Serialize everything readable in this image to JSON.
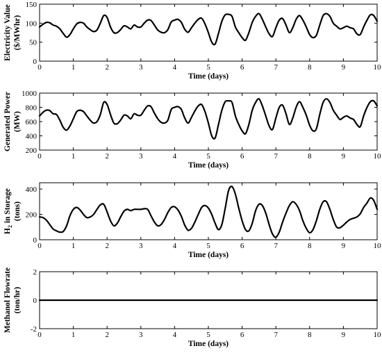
{
  "chart_data": [
    {
      "type": "line",
      "ylabel": [
        "Electricity Value",
        "($/MWhr)"
      ],
      "xlabel": "Time (days)",
      "xlim": [
        0,
        10
      ],
      "ylim": [
        0,
        150
      ],
      "xticks": [
        "0",
        "1",
        "2",
        "3",
        "4",
        "5",
        "6",
        "7",
        "8",
        "9",
        "10"
      ],
      "yticks": [
        "0",
        "50",
        "100",
        "150"
      ],
      "series": [
        {
          "x": [
            0,
            0.1,
            0.2,
            0.3,
            0.4,
            0.5,
            0.6,
            0.7,
            0.8,
            0.9,
            1,
            1.1,
            1.2,
            1.3,
            1.4,
            1.5,
            1.6,
            1.7,
            1.8,
            1.9,
            2,
            2.1,
            2.2,
            2.3,
            2.4,
            2.5,
            2.6,
            2.7,
            2.8,
            2.9,
            3,
            3.1,
            3.2,
            3.3,
            3.4,
            3.5,
            3.6,
            3.7,
            3.8,
            3.9,
            4,
            4.1,
            4.2,
            4.3,
            4.4,
            4.5,
            4.6,
            4.7,
            4.8,
            4.9,
            5,
            5.1,
            5.2,
            5.3,
            5.4,
            5.5,
            5.6,
            5.7,
            5.8,
            5.9,
            6,
            6.1,
            6.2,
            6.3,
            6.4,
            6.5,
            6.6,
            6.7,
            6.8,
            6.9,
            7,
            7.1,
            7.2,
            7.3,
            7.4,
            7.5,
            7.6,
            7.7,
            7.8,
            7.9,
            8,
            8.1,
            8.2,
            8.3,
            8.4,
            8.5,
            8.6,
            8.7,
            8.8,
            8.9,
            9,
            9.1,
            9.2,
            9.3,
            9.4,
            9.5,
            9.6,
            9.7,
            9.8,
            9.9,
            10
          ],
          "y": [
            90,
            97,
            102,
            101,
            95,
            92,
            85,
            73,
            63,
            70,
            85,
            98,
            102,
            100,
            90,
            83,
            78,
            82,
            100,
            120,
            115,
            90,
            75,
            75,
            83,
            93,
            90,
            85,
            95,
            90,
            90,
            100,
            108,
            107,
            95,
            82,
            76,
            75,
            83,
            103,
            108,
            110,
            102,
            84,
            76,
            88,
            100,
            110,
            113,
            98,
            75,
            50,
            45,
            73,
            105,
            122,
            123,
            118,
            90,
            75,
            62,
            55,
            75,
            102,
            118,
            125,
            110,
            90,
            72,
            65,
            88,
            108,
            112,
            95,
            75,
            88,
            110,
            120,
            108,
            90,
            70,
            62,
            68,
            95,
            120,
            125,
            118,
            100,
            92,
            85,
            88,
            92,
            88,
            85,
            72,
            70,
            90,
            108,
            122,
            120,
            105
          ]
        }
      ]
    },
    {
      "type": "line",
      "ylabel": [
        "Generated Power",
        "(MW)"
      ],
      "xlabel": "Time (days)",
      "xlim": [
        0,
        10
      ],
      "ylim": [
        200,
        1000
      ],
      "xticks": [
        "0",
        "1",
        "2",
        "3",
        "4",
        "5",
        "6",
        "7",
        "8",
        "9",
        "10"
      ],
      "yticks": [
        "200",
        "400",
        "600",
        "800",
        "1000"
      ],
      "series": [
        {
          "x": [
            0,
            0.1,
            0.2,
            0.3,
            0.4,
            0.5,
            0.6,
            0.7,
            0.8,
            0.9,
            1,
            1.1,
            1.2,
            1.3,
            1.4,
            1.5,
            1.6,
            1.7,
            1.8,
            1.9,
            2,
            2.1,
            2.2,
            2.3,
            2.4,
            2.5,
            2.6,
            2.7,
            2.8,
            2.9,
            3,
            3.1,
            3.2,
            3.3,
            3.4,
            3.5,
            3.6,
            3.7,
            3.8,
            3.9,
            4,
            4.1,
            4.2,
            4.3,
            4.4,
            4.5,
            4.6,
            4.7,
            4.8,
            4.9,
            5,
            5.1,
            5.2,
            5.3,
            5.4,
            5.5,
            5.6,
            5.7,
            5.8,
            5.9,
            6,
            6.1,
            6.2,
            6.3,
            6.4,
            6.5,
            6.6,
            6.7,
            6.8,
            6.9,
            7,
            7.1,
            7.2,
            7.3,
            7.4,
            7.5,
            7.6,
            7.7,
            7.8,
            7.9,
            8,
            8.1,
            8.2,
            8.3,
            8.4,
            8.5,
            8.6,
            8.7,
            8.8,
            8.9,
            9,
            9.1,
            9.2,
            9.3,
            9.4,
            9.5,
            9.6,
            9.7,
            9.8,
            9.9,
            10
          ],
          "y": [
            680,
            730,
            760,
            755,
            710,
            700,
            620,
            520,
            480,
            540,
            640,
            740,
            760,
            740,
            680,
            620,
            580,
            600,
            700,
            870,
            840,
            700,
            580,
            570,
            620,
            690,
            680,
            640,
            710,
            690,
            690,
            760,
            820,
            810,
            720,
            640,
            590,
            580,
            620,
            770,
            800,
            810,
            770,
            650,
            580,
            660,
            750,
            820,
            840,
            740,
            580,
            400,
            370,
            560,
            760,
            880,
            890,
            870,
            680,
            560,
            470,
            430,
            560,
            760,
            870,
            920,
            820,
            680,
            540,
            490,
            650,
            800,
            830,
            710,
            560,
            650,
            800,
            880,
            800,
            690,
            550,
            470,
            500,
            700,
            870,
            920,
            870,
            760,
            690,
            630,
            660,
            680,
            650,
            630,
            560,
            530,
            680,
            800,
            880,
            890,
            820
          ]
        }
      ]
    },
    {
      "type": "line",
      "ylabel": [
        "H2 in Storage",
        "(tons)"
      ],
      "ylabel_parts": {
        "main": "H",
        "sub": "2",
        "rest": " in Storage"
      },
      "xlabel": "Time (days)",
      "xlim": [
        0,
        10
      ],
      "ylim": [
        0,
        450
      ],
      "xticks": [
        "0",
        "1",
        "2",
        "3",
        "4",
        "5",
        "6",
        "7",
        "8",
        "9",
        "10"
      ],
      "yticks": [
        "0",
        "200",
        "400"
      ],
      "series": [
        {
          "x": [
            0,
            0.1,
            0.2,
            0.3,
            0.4,
            0.5,
            0.6,
            0.7,
            0.8,
            0.9,
            1,
            1.1,
            1.2,
            1.3,
            1.4,
            1.5,
            1.6,
            1.7,
            1.8,
            1.9,
            2,
            2.1,
            2.2,
            2.3,
            2.4,
            2.5,
            2.6,
            2.7,
            2.8,
            2.9,
            3,
            3.1,
            3.2,
            3.3,
            3.4,
            3.5,
            3.6,
            3.7,
            3.8,
            3.9,
            4,
            4.1,
            4.2,
            4.3,
            4.4,
            4.5,
            4.6,
            4.7,
            4.8,
            4.9,
            5,
            5.1,
            5.2,
            5.3,
            5.4,
            5.5,
            5.6,
            5.7,
            5.8,
            5.9,
            6,
            6.1,
            6.2,
            6.3,
            6.4,
            6.5,
            6.6,
            6.7,
            6.8,
            6.9,
            7,
            7.1,
            7.2,
            7.3,
            7.4,
            7.5,
            7.6,
            7.7,
            7.8,
            7.9,
            8,
            8.1,
            8.2,
            8.3,
            8.4,
            8.5,
            8.6,
            8.7,
            8.8,
            8.9,
            9,
            9.1,
            9.2,
            9.3,
            9.4,
            9.5,
            9.6,
            9.7,
            9.8,
            9.9,
            10
          ],
          "y": [
            180,
            175,
            155,
            120,
            85,
            70,
            60,
            65,
            110,
            190,
            240,
            255,
            235,
            200,
            175,
            180,
            200,
            240,
            275,
            280,
            220,
            150,
            110,
            130,
            180,
            225,
            240,
            230,
            240,
            240,
            240,
            245,
            240,
            190,
            140,
            110,
            120,
            160,
            215,
            255,
            260,
            235,
            185,
            115,
            75,
            90,
            140,
            200,
            255,
            270,
            250,
            200,
            130,
            80,
            120,
            250,
            390,
            420,
            360,
            250,
            150,
            80,
            70,
            130,
            230,
            280,
            270,
            210,
            120,
            45,
            20,
            60,
            140,
            210,
            270,
            300,
            280,
            230,
            150,
            90,
            55,
            80,
            150,
            240,
            300,
            300,
            240,
            160,
            100,
            95,
            115,
            140,
            160,
            170,
            180,
            205,
            255,
            290,
            330,
            310,
            240
          ]
        }
      ]
    },
    {
      "type": "line",
      "ylabel": [
        "Methanol Flowrate",
        "(ton/hr)"
      ],
      "xlabel": "Time (days)",
      "xlim": [
        0,
        10
      ],
      "ylim": [
        -2,
        2
      ],
      "xticks": [
        "0",
        "1",
        "2",
        "3",
        "4",
        "5",
        "6",
        "7",
        "8",
        "9",
        "10"
      ],
      "yticks": [
        "-2",
        "0",
        "2"
      ],
      "series": [
        {
          "x": [
            0,
            10
          ],
          "y": [
            0,
            0
          ]
        }
      ]
    }
  ]
}
